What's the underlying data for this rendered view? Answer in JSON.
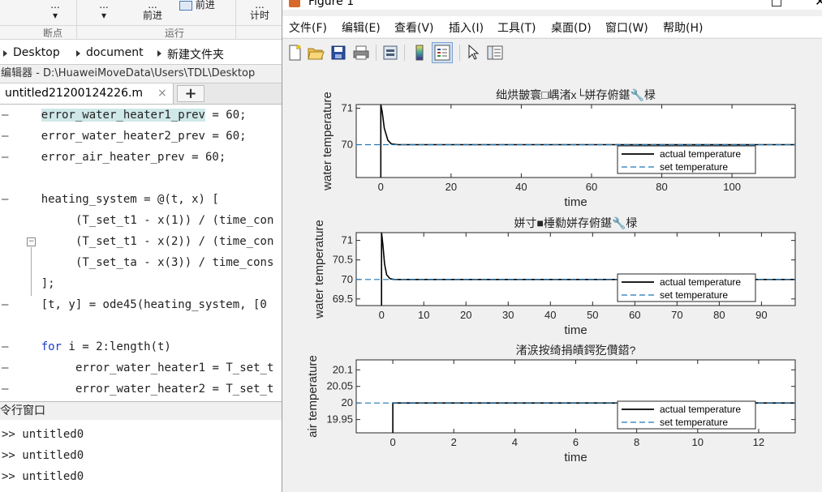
{
  "editor": {
    "ribbon": {
      "buttons": [
        {
          "top": "...",
          "caret": true
        },
        {
          "top": "...",
          "caret": true
        },
        {
          "top": "...",
          "bottom": "前进"
        },
        {
          "top": "前进"
        },
        {
          "top": "...",
          "bottom": "计时"
        }
      ],
      "groups": [
        "断点",
        "运行"
      ]
    },
    "address": [
      "Desktop",
      "document",
      "新建文件夹"
    ],
    "title": "编辑器 - D:\\HuaweiMoveData\\Users\\TDL\\Desktop",
    "tab": {
      "name": "untitled21200124226.m",
      "close": "×",
      "add": "+"
    },
    "code_lines": [
      {
        "dash": true,
        "indent": 6,
        "text": "error_water_heater1_prev",
        "highlight": true,
        "rest": " = 60;"
      },
      {
        "dash": true,
        "indent": 6,
        "text": "error_water_heater2_prev = 60;"
      },
      {
        "dash": true,
        "indent": 6,
        "text": "error_air_heater_prev = 60;"
      },
      {
        "dash": false,
        "indent": 0,
        "text": ""
      },
      {
        "dash": true,
        "indent": 6,
        "text": "heating_system = @(t, x) ["
      },
      {
        "dash": false,
        "indent": 11,
        "text": "(T_set_t1 - x(1)) / (time_con"
      },
      {
        "dash": false,
        "indent": 11,
        "text": "(T_set_t1 - x(2)) / (time_con"
      },
      {
        "dash": false,
        "indent": 11,
        "text": "(T_set_ta - x(3)) / time_cons"
      },
      {
        "dash": false,
        "indent": 6,
        "text": "];"
      },
      {
        "dash": true,
        "indent": 6,
        "text": "[t, y] = ode45(heating_system, [0"
      },
      {
        "dash": false,
        "indent": 0,
        "text": ""
      },
      {
        "dash": true,
        "indent": 6,
        "keyword": "for",
        "text": " i = 2:length(t)"
      },
      {
        "dash": true,
        "indent": 11,
        "text": "error_water_heater1 = T_set_t"
      },
      {
        "dash": true,
        "indent": 11,
        "text": "error_water_heater2 = T_set_t"
      }
    ],
    "fold_symbol": "−",
    "command_window": {
      "title": "令行窗口",
      "lines": [
        ">> untitled0",
        ">> untitled0",
        ">> untitled0"
      ]
    }
  },
  "figure": {
    "title": "Figure 1",
    "menu": [
      "文件(F)",
      "编辑(E)",
      "查看(V)",
      "插入(I)",
      "工具(T)",
      "桌面(D)",
      "窗口(W)",
      "帮助(H)"
    ],
    "toolbar": [
      "new-icon",
      "open-icon",
      "save-icon",
      "print-icon",
      "print-preview-icon",
      "colorbar-icon",
      "legend-icon",
      "pointer-icon",
      "property-inspector-icon"
    ]
  },
  "chart_data": [
    {
      "type": "line",
      "title": "绌烘皵寰□嵎渚х└姘存俯鍖🔧椂",
      "xlabel": "time",
      "ylabel": "water temperature",
      "xlim": [
        -7,
        118
      ],
      "ylim": [
        69.1,
        71.1
      ],
      "xticks": [
        0,
        20,
        40,
        60,
        80,
        100
      ],
      "yticks": [
        70,
        71
      ],
      "legend": {
        "position": "bottom-right",
        "entries": [
          "actual temperature",
          "set temperature"
        ]
      },
      "series": [
        {
          "name": "actual temperature",
          "color": "#000000",
          "style": "solid",
          "x": [
            0,
            0,
            0.4,
            1,
            2,
            3,
            5,
            10,
            118
          ],
          "y": [
            69.1,
            71.1,
            70.9,
            70.45,
            70.12,
            70.02,
            70.0,
            70.0,
            70.0
          ]
        },
        {
          "name": "set temperature",
          "color": "#1f77b4",
          "style": "dashed",
          "x": [
            -7,
            118
          ],
          "y": [
            70,
            70
          ]
        }
      ]
    },
    {
      "type": "line",
      "title": "姘寸■棰勬姘存俯鍖🔧椂",
      "xlabel": "time",
      "ylabel": "water temperature",
      "xlim": [
        -6,
        98
      ],
      "ylim": [
        69.33,
        71.2
      ],
      "xticks": [
        0,
        10,
        20,
        30,
        40,
        50,
        60,
        70,
        80,
        90
      ],
      "yticks": [
        69.5,
        70,
        70.5,
        71
      ],
      "legend": {
        "position": "bottom-right",
        "entries": [
          "actual temperature",
          "set temperature"
        ]
      },
      "series": [
        {
          "name": "actual temperature",
          "color": "#000000",
          "style": "solid",
          "x": [
            0,
            0,
            0.3,
            0.7,
            1.2,
            2,
            3,
            5,
            98
          ],
          "y": [
            69.33,
            71.2,
            70.9,
            70.4,
            70.12,
            70.02,
            70.0,
            70.0,
            70.0
          ]
        },
        {
          "name": "set temperature",
          "color": "#1f77b4",
          "style": "dashed",
          "x": [
            -6,
            98
          ],
          "y": [
            70,
            70
          ]
        }
      ]
    },
    {
      "type": "line",
      "title": "渚涙按绮捐皟鍔犵儹鍣?",
      "xlabel": "time",
      "ylabel": "air temperature",
      "xlim": [
        -1.2,
        13.2
      ],
      "ylim": [
        19.91,
        20.13
      ],
      "xticks": [
        0,
        2,
        4,
        6,
        8,
        10,
        12
      ],
      "yticks": [
        19.95,
        20,
        20.05,
        20.1
      ],
      "legend": {
        "position": "bottom-right",
        "entries": [
          "actual temperature",
          "set temperature"
        ]
      },
      "series": [
        {
          "name": "actual temperature",
          "color": "#000000",
          "style": "solid",
          "x": [
            0,
            0,
            13.2
          ],
          "y": [
            19.91,
            20.0,
            20.0
          ]
        },
        {
          "name": "set temperature",
          "color": "#1f77b4",
          "style": "dashed",
          "x": [
            -1.2,
            13.2
          ],
          "y": [
            20,
            20
          ]
        }
      ]
    }
  ]
}
